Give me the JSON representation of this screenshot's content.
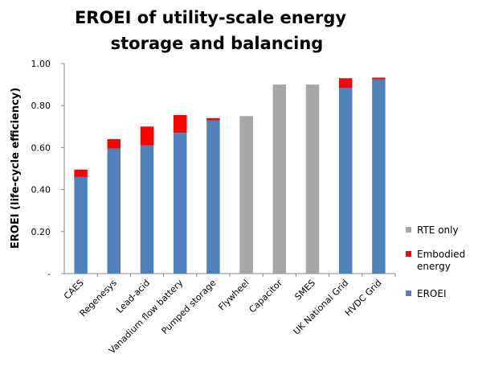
{
  "chart_data": {
    "type": "bar",
    "stacked": true,
    "title_lines": [
      "EROEI of utility-scale  energy",
      "storage and balancing"
    ],
    "xlabel": "",
    "ylabel": "EROEI (life-cycle efficiency)",
    "ylim": [
      0,
      1.0
    ],
    "y_ticks": [
      0,
      0.2,
      0.4,
      0.6,
      0.8,
      1.0
    ],
    "y_tick_labels": [
      "-",
      "0.20",
      "0.40",
      "0.60",
      "0.80",
      "1.00"
    ],
    "grid": false,
    "legend_position": "right",
    "categories": [
      "CAES",
      "Regenesys",
      "Lead-acid",
      "Vanadium flow battery",
      "Pumped storage",
      "Flywheel",
      "Capacitor",
      "SMES",
      "UK National Grid",
      "HVDC Grid"
    ],
    "series": [
      {
        "name": "EROEI",
        "color": "#4f81bd",
        "values": [
          0.46,
          0.595,
          0.61,
          0.67,
          0.73,
          0,
          0,
          0,
          0.885,
          0.925
        ]
      },
      {
        "name": "Embodied energy",
        "color": "#ff0000",
        "values": [
          0.035,
          0.045,
          0.09,
          0.085,
          0.01,
          0,
          0,
          0,
          0.045,
          0.008
        ]
      },
      {
        "name": "RTE only",
        "color": "#a6a6a6",
        "values": [
          0,
          0,
          0,
          0,
          0,
          0.75,
          0.9,
          0.9,
          0,
          0
        ]
      }
    ],
    "legend": [
      {
        "label_lines": [
          "RTE only"
        ],
        "color": "#a6a6a6"
      },
      {
        "label_lines": [
          "Embodied",
          "energy"
        ],
        "color": "#ff0000"
      },
      {
        "label_lines": [
          "EROEI"
        ],
        "color": "#4f81bd"
      }
    ]
  }
}
